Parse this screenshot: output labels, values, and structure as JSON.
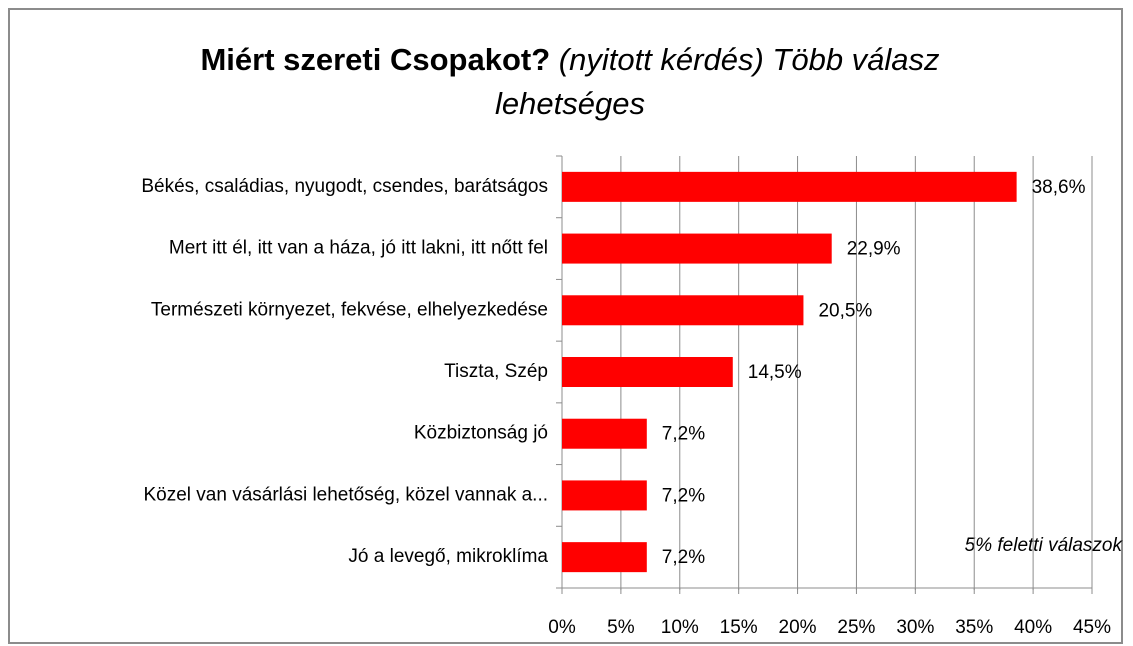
{
  "chart_data": {
    "type": "barh",
    "title": "Miért szereti Csopakot?",
    "subtitle": "(nyitott kérdés) Több válasz lehetséges",
    "annotation": "5% feletti válaszok",
    "categories": [
      "Békés, családias, nyugodt, csendes, barátságos",
      "Mert itt él, itt van a háza, jó itt lakni, itt nőtt fel",
      "Természeti környezet, fekvése, elhelyezkedése",
      "Tiszta, Szép",
      "Közbiztonság jó",
      "Közel van vásárlási lehetőség, közel vannak a...",
      "Jó a levegő, mikroklíma"
    ],
    "values": [
      38.6,
      22.9,
      20.5,
      14.5,
      7.2,
      7.2,
      7.2
    ],
    "value_labels": [
      "38,6%",
      "22,9%",
      "20,5%",
      "14,5%",
      "7,2%",
      "7,2%",
      "7,2%"
    ],
    "color": "#ff0000",
    "xlim": [
      0,
      45
    ],
    "xticks": [
      {
        "value": 0,
        "label": "0%"
      },
      {
        "value": 5,
        "label": "5%"
      },
      {
        "value": 10,
        "label": "10%"
      },
      {
        "value": 15,
        "label": "15%"
      },
      {
        "value": 20,
        "label": "20%"
      },
      {
        "value": 25,
        "label": "25%"
      },
      {
        "value": 30,
        "label": "30%"
      },
      {
        "value": 35,
        "label": "35%"
      },
      {
        "value": 40,
        "label": "40%"
      },
      {
        "value": 45,
        "label": "45%"
      }
    ],
    "grid": true
  }
}
